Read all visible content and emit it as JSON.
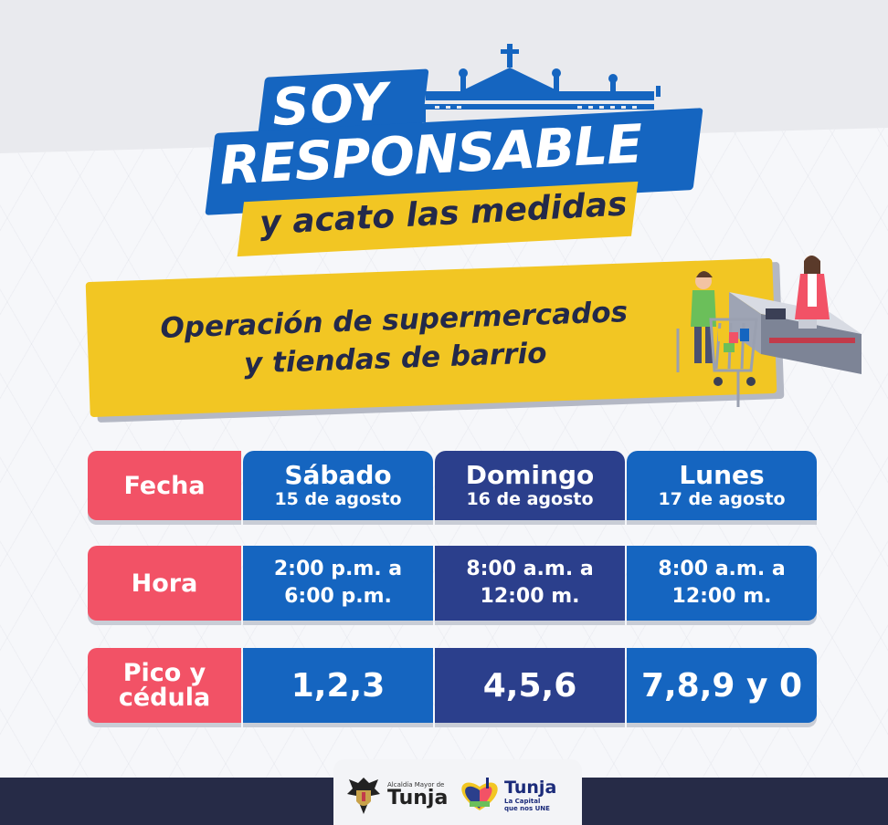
{
  "headline": {
    "soy": "SOY",
    "responsable": "RESPONSABLE",
    "subtitle": "y acato las medidas"
  },
  "banner": {
    "line1": "Operación de supermercados",
    "line2": "y tiendas de barrio"
  },
  "table": {
    "row_labels": {
      "fecha": "Fecha",
      "hora": "Hora",
      "pico_l1": "Pico y",
      "pico_l2": "cédula"
    },
    "days": [
      {
        "day": "Sábado",
        "date": "15 de agosto",
        "hour_l1": "2:00 p.m. a",
        "hour_l2": "6:00 p.m.",
        "pico": "1,2,3"
      },
      {
        "day": "Domingo",
        "date": "16 de agosto",
        "hour_l1": "8:00 a.m. a",
        "hour_l2": "12:00 m.",
        "pico": "4,5,6"
      },
      {
        "day": "Lunes",
        "date": "17 de agosto",
        "hour_l1": "8:00 a.m. a",
        "hour_l2": "12:00 m.",
        "pico": "7,8,9 y 0"
      }
    ]
  },
  "footer": {
    "alcaldia": "Alcaldía Mayor de",
    "tunja": "Tunja",
    "tunja2": "Tunja",
    "slogan": "La Capital que nos UNE"
  },
  "colors": {
    "blue": "#1565c0",
    "navy": "#2b3f8c",
    "red": "#f25266",
    "yellow": "#f2c623",
    "dark": "#23294a"
  },
  "icons": [
    "church-icon",
    "supermarket-illustration-icon",
    "coat-of-arms-icon",
    "tunja-heart-logo-icon"
  ]
}
